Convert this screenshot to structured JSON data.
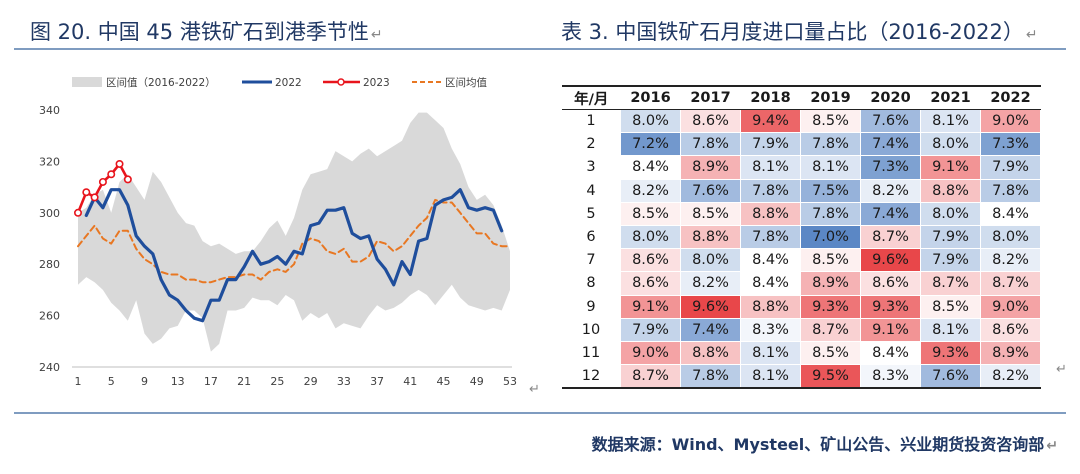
{
  "left_title": "图 20. 中国 45 港铁矿石到港季节性",
  "right_title": "表 3. 中国铁矿石月度进口量占比（2016-2022）",
  "return_mark": "↵",
  "source": "数据来源：Wind、Mysteel、矿山公告、兴业期货投资咨询部",
  "chart_data": {
    "type": "line",
    "title": "中国 45 港铁矿石到港季节性",
    "xlabel": "",
    "ylabel": "",
    "ylim": [
      240,
      340
    ],
    "yticks": [
      240,
      260,
      280,
      300,
      320,
      340
    ],
    "xlim": [
      1,
      53
    ],
    "xticks": [
      1,
      5,
      9,
      13,
      17,
      21,
      25,
      29,
      33,
      37,
      41,
      45,
      49,
      53
    ],
    "legend": [
      "区间值（2016-2022）",
      "2022",
      "2023",
      "区间均值"
    ],
    "series": [
      {
        "name": "区间值（2016-2022）",
        "kind": "range",
        "color": "#d9d9d9",
        "upper": [
          300,
          302,
          307,
          309,
          300,
          312,
          315,
          310,
          305,
          316,
          312,
          306,
          300,
          296,
          295,
          289,
          287,
          288,
          286,
          284,
          285,
          285,
          289,
          294,
          297,
          291,
          298,
          309,
          315,
          316,
          317,
          324,
          322,
          320,
          323,
          325,
          322,
          324,
          326,
          328,
          335,
          339,
          339,
          336,
          333,
          325,
          319,
          310,
          305,
          307,
          303,
          295,
          285
        ],
        "lower": [
          272,
          275,
          273,
          270,
          265,
          262,
          258,
          266,
          253,
          249,
          251,
          255,
          256,
          262,
          262,
          259,
          246,
          249,
          262,
          262,
          263,
          267,
          266,
          266,
          264,
          268,
          266,
          258,
          261,
          259,
          261,
          255,
          257,
          256,
          255,
          260,
          264,
          262,
          263,
          265,
          268,
          270,
          268,
          264,
          268,
          272,
          267,
          264,
          263,
          262,
          263,
          262,
          270
        ]
      },
      {
        "name": "2022",
        "color": "#1f4e9c",
        "values": [
          null,
          299,
          306,
          302,
          309,
          309,
          303,
          291,
          287,
          284,
          274,
          268,
          266,
          262,
          259,
          258,
          266,
          266,
          274,
          274,
          279,
          285,
          280,
          281,
          283,
          280,
          285,
          284,
          295,
          296,
          301,
          301,
          302,
          292,
          290,
          291,
          282,
          278,
          272,
          281,
          276,
          289,
          290,
          303,
          305,
          306,
          309,
          302,
          301,
          302,
          301,
          293
        ]
      },
      {
        "name": "2023",
        "color": "#e8141c",
        "values": [
          300,
          308,
          306,
          312,
          315,
          319,
          313
        ]
      },
      {
        "name": "区间均值",
        "color": "#e87722",
        "dashed": true,
        "values": [
          287,
          291,
          295,
          290,
          288,
          293,
          293,
          286,
          282,
          280,
          277,
          276,
          276,
          274,
          274,
          273,
          273,
          274,
          275,
          275,
          276,
          276,
          274,
          277,
          278,
          277,
          280,
          288,
          290,
          289,
          285,
          284,
          286,
          281,
          281,
          283,
          289,
          288,
          285,
          287,
          291,
          295,
          298,
          305,
          304,
          304,
          300,
          296,
          292,
          292,
          288,
          287,
          287
        ]
      }
    ]
  },
  "table": {
    "corner": "年/月",
    "years": [
      "2016",
      "2017",
      "2018",
      "2019",
      "2020",
      "2021",
      "2022"
    ],
    "months": [
      "1",
      "2",
      "3",
      "4",
      "5",
      "6",
      "7",
      "8",
      "9",
      "10",
      "11",
      "12"
    ],
    "values": [
      [
        "8.0%",
        "8.6%",
        "9.4%",
        "8.5%",
        "7.6%",
        "8.1%",
        "9.0%"
      ],
      [
        "7.2%",
        "7.8%",
        "7.9%",
        "7.8%",
        "7.4%",
        "8.0%",
        "7.3%"
      ],
      [
        "8.4%",
        "8.9%",
        "8.1%",
        "8.1%",
        "7.3%",
        "9.1%",
        "7.9%"
      ],
      [
        "8.2%",
        "7.6%",
        "7.8%",
        "7.5%",
        "8.2%",
        "8.8%",
        "7.8%"
      ],
      [
        "8.5%",
        "8.5%",
        "8.8%",
        "7.8%",
        "7.4%",
        "8.0%",
        "8.4%"
      ],
      [
        "8.0%",
        "8.8%",
        "7.8%",
        "7.0%",
        "8.7%",
        "7.9%",
        "8.0%"
      ],
      [
        "8.6%",
        "8.0%",
        "8.4%",
        "8.5%",
        "9.6%",
        "7.9%",
        "8.2%"
      ],
      [
        "8.6%",
        "8.2%",
        "8.4%",
        "8.9%",
        "8.6%",
        "8.7%",
        "8.7%"
      ],
      [
        "9.1%",
        "9.6%",
        "8.8%",
        "9.3%",
        "9.3%",
        "8.5%",
        "9.0%"
      ],
      [
        "7.9%",
        "7.4%",
        "8.3%",
        "8.7%",
        "9.1%",
        "8.1%",
        "8.6%"
      ],
      [
        "9.0%",
        "8.8%",
        "8.1%",
        "8.5%",
        "8.4%",
        "9.3%",
        "8.9%"
      ],
      [
        "8.7%",
        "7.8%",
        "8.1%",
        "9.5%",
        "8.3%",
        "7.6%",
        "8.2%"
      ]
    ],
    "colors": {
      "low": "#5b87c5",
      "mid": "#ffffff",
      "high": "#e8474a"
    }
  }
}
